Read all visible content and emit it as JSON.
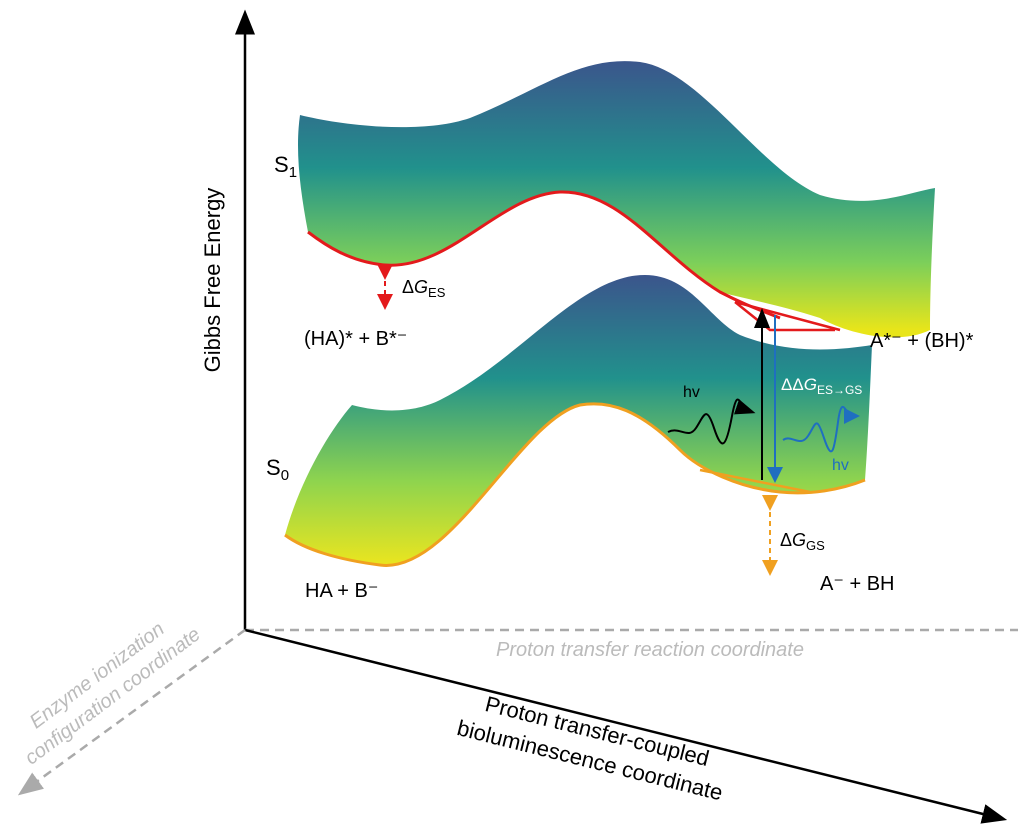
{
  "y_axis_label": "Gibbs Free Energy",
  "axes": {
    "horizontal": "Proton transfer reaction coordinate",
    "depth": [
      "Enzyme ionization",
      "configuration coordinate"
    ],
    "diagonal": [
      "Proton transfer-coupled",
      "bioluminescence coordinate"
    ]
  },
  "states": [
    {
      "symbol": "S",
      "sub": "1"
    },
    {
      "symbol": "S",
      "sub": "0"
    }
  ],
  "species": {
    "es_reactant": "(HA)* + B*⁻",
    "es_product": "A*⁻ + (BH)*",
    "gs_reactant": "HA + B⁻",
    "gs_product": "A⁻ + BH"
  },
  "energies": {
    "es": {
      "delta": "Δ",
      "symbol": "G",
      "sub": "ES"
    },
    "gs": {
      "delta": "Δ",
      "symbol": "G",
      "sub": "GS"
    },
    "difference": {
      "delta": "ΔΔ",
      "symbol": "G",
      "sub": "ES→GS"
    }
  },
  "photons": {
    "absorbed": "hv",
    "emitted": "hv"
  }
}
